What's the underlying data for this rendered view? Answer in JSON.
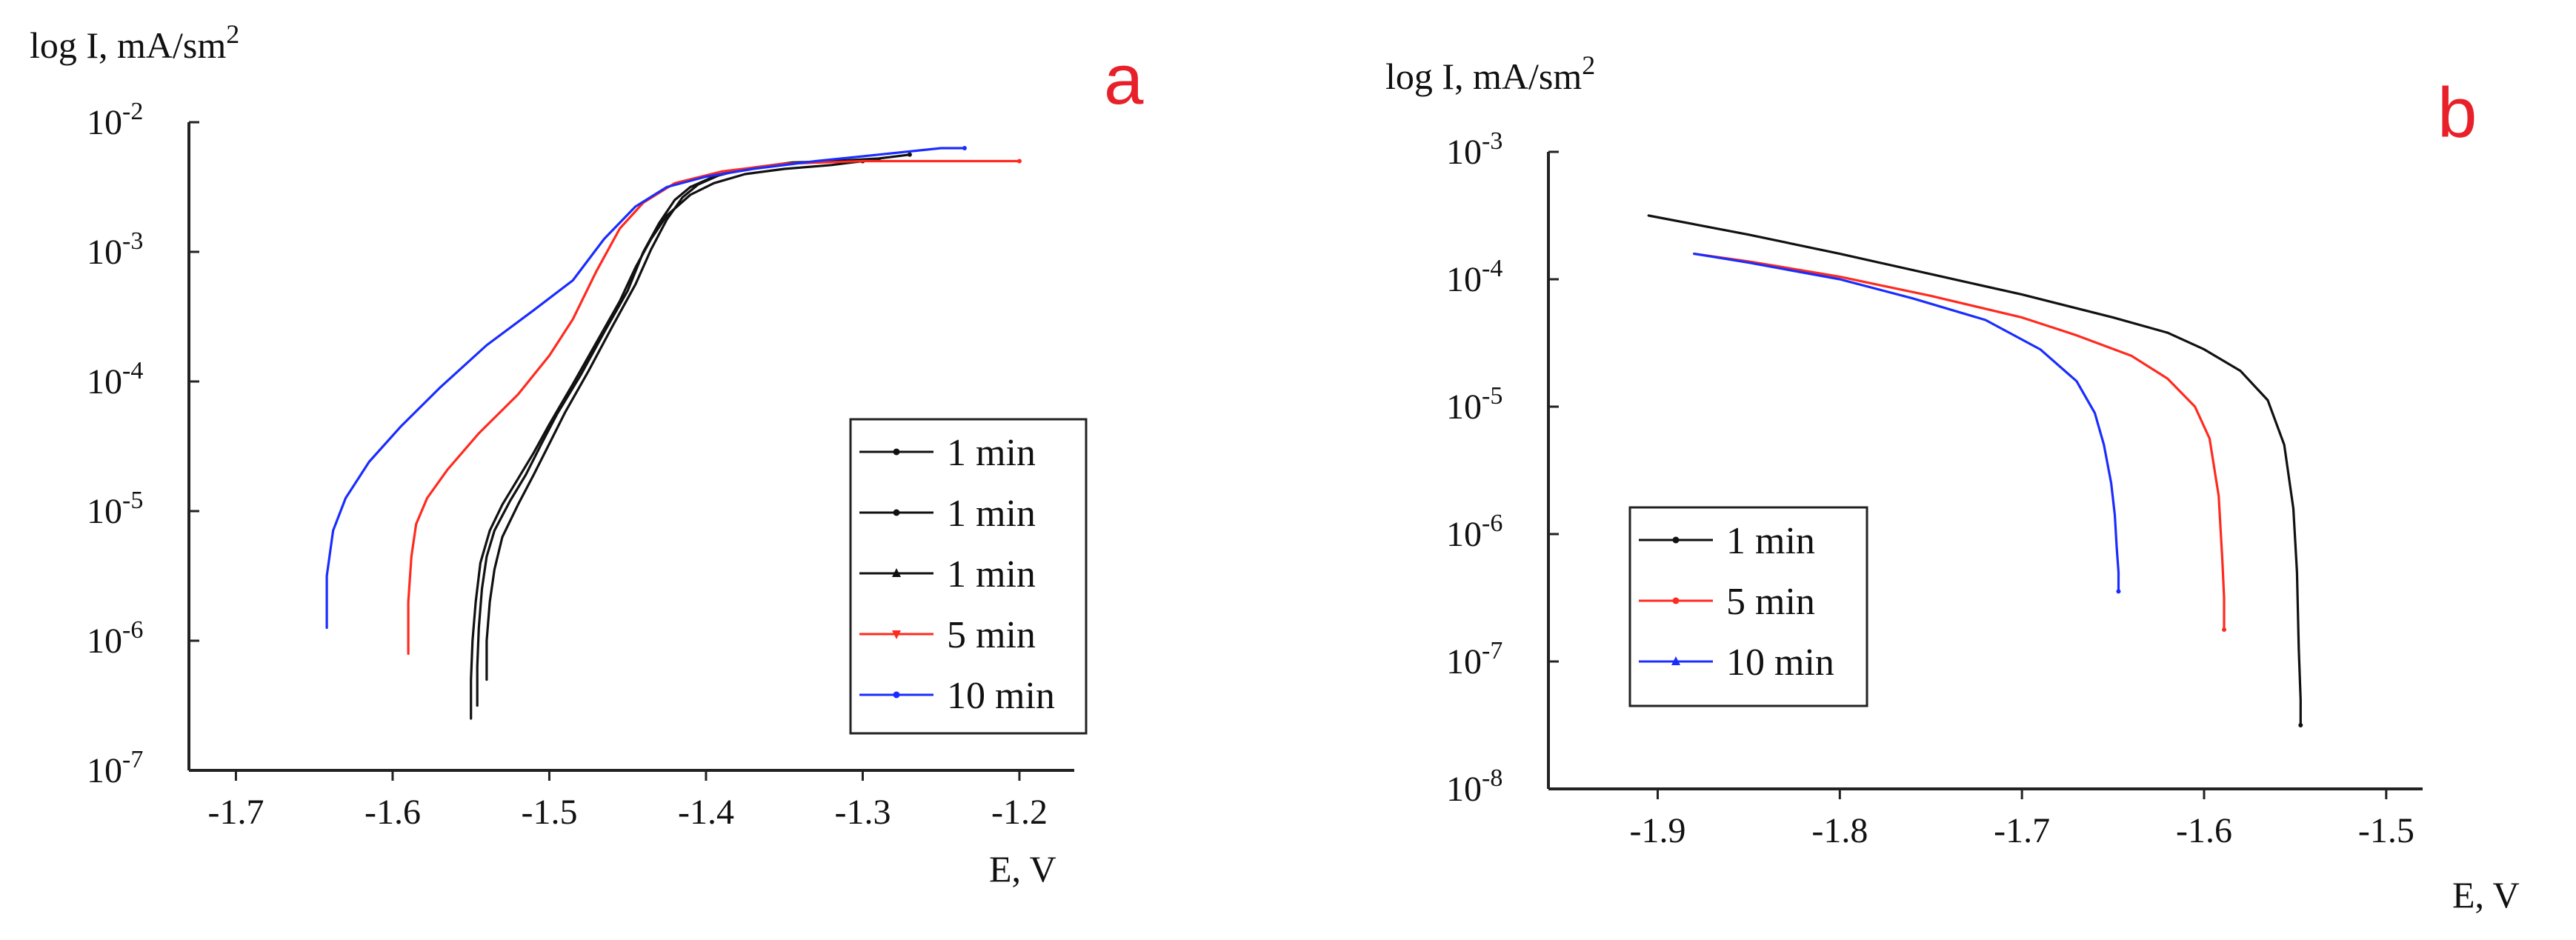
{
  "colors": {
    "black": "#111111",
    "red": "#ff2a1f",
    "blue": "#1a2cff",
    "panel_label": "#e8202a"
  },
  "chart_data": [
    {
      "type": "line",
      "panel_label": "a",
      "ylabel": "log I, mA/sm",
      "ylabel_sup": "2",
      "xlabel": "E, V",
      "xlim": [
        -1.73,
        -1.165
      ],
      "ylim_log10": [
        -7,
        -2
      ],
      "xticks": [
        -1.7,
        -1.6,
        -1.5,
        -1.4,
        -1.3,
        -1.2
      ],
      "xtick_labels": [
        "-1.7",
        "-1.6",
        "-1.5",
        "-1.4",
        "-1.3",
        "-1.2"
      ],
      "yticks": [
        {
          "base": "10",
          "exp": "-7",
          "value": -7
        },
        {
          "base": "10",
          "exp": "-6",
          "value": -6
        },
        {
          "base": "10",
          "exp": "-5",
          "value": -5
        },
        {
          "base": "10",
          "exp": "-4",
          "value": -4
        },
        {
          "base": "10",
          "exp": "-3",
          "value": -3
        },
        {
          "base": "10",
          "exp": "-2",
          "value": -2
        }
      ],
      "legend": {
        "position": "lower-right",
        "entries": [
          {
            "label": "1 min",
            "color": "black",
            "marker": "dot"
          },
          {
            "label": "1 min",
            "color": "black",
            "marker": "dot"
          },
          {
            "label": "1 min",
            "color": "black",
            "marker": "triangle-up"
          },
          {
            "label": "5 min",
            "color": "red",
            "marker": "triangle-down"
          },
          {
            "label": "10 min",
            "color": "blue",
            "marker": "dot"
          }
        ]
      },
      "series": [
        {
          "name": "1 min",
          "color": "black",
          "x": [
            -1.546,
            -1.546,
            -1.545,
            -1.543,
            -1.54,
            -1.535,
            -1.525,
            -1.515,
            -1.505,
            -1.495,
            -1.48,
            -1.465,
            -1.45,
            -1.44,
            -1.43,
            -1.42,
            -1.41,
            -1.395,
            -1.375,
            -1.35,
            -1.32,
            -1.29,
            -1.27
          ],
          "log10_y": [
            -6.5,
            -6.2,
            -5.9,
            -5.6,
            -5.35,
            -5.15,
            -4.92,
            -4.72,
            -4.48,
            -4.25,
            -3.95,
            -3.62,
            -3.3,
            -3.0,
            -2.78,
            -2.6,
            -2.5,
            -2.42,
            -2.36,
            -2.32,
            -2.3,
            -2.28,
            -2.25
          ]
        },
        {
          "name": "1 min",
          "color": "black",
          "x": [
            -1.54,
            -1.54,
            -1.538,
            -1.535,
            -1.53,
            -1.52,
            -1.51,
            -1.5,
            -1.49,
            -1.475,
            -1.46,
            -1.445,
            -1.435,
            -1.425,
            -1.415,
            -1.405,
            -1.39,
            -1.37,
            -1.345,
            -1.315,
            -1.29
          ],
          "log10_y": [
            -6.3,
            -6.0,
            -5.7,
            -5.45,
            -5.2,
            -4.95,
            -4.72,
            -4.48,
            -4.24,
            -3.92,
            -3.58,
            -3.25,
            -2.98,
            -2.75,
            -2.58,
            -2.48,
            -2.4,
            -2.35,
            -2.31,
            -2.3,
            -2.29
          ]
        },
        {
          "name": "1 min",
          "color": "black",
          "x": [
            -1.55,
            -1.55,
            -1.549,
            -1.547,
            -1.544,
            -1.538,
            -1.53,
            -1.52,
            -1.51,
            -1.5,
            -1.485,
            -1.47,
            -1.455,
            -1.445,
            -1.435,
            -1.425,
            -1.41,
            -1.395,
            -1.375,
            -1.35,
            -1.32,
            -1.3
          ],
          "log10_y": [
            -6.6,
            -6.3,
            -6.0,
            -5.7,
            -5.4,
            -5.15,
            -4.95,
            -4.75,
            -4.55,
            -4.33,
            -4.02,
            -3.7,
            -3.38,
            -3.12,
            -2.9,
            -2.72,
            -2.56,
            -2.47,
            -2.4,
            -2.36,
            -2.33,
            -2.3
          ]
        },
        {
          "name": "5 min",
          "color": "red",
          "x": [
            -1.59,
            -1.59,
            -1.588,
            -1.585,
            -1.578,
            -1.565,
            -1.545,
            -1.52,
            -1.5,
            -1.485,
            -1.47,
            -1.455,
            -1.44,
            -1.42,
            -1.39,
            -1.35,
            -1.3,
            -1.25,
            -1.2
          ],
          "log10_y": [
            -6.1,
            -5.7,
            -5.35,
            -5.1,
            -4.9,
            -4.68,
            -4.4,
            -4.1,
            -3.8,
            -3.52,
            -3.15,
            -2.82,
            -2.62,
            -2.47,
            -2.38,
            -2.32,
            -2.3,
            -2.3,
            -2.3
          ]
        },
        {
          "name": "10 min",
          "color": "blue",
          "x": [
            -1.642,
            -1.642,
            -1.638,
            -1.63,
            -1.615,
            -1.595,
            -1.57,
            -1.54,
            -1.51,
            -1.485,
            -1.465,
            -1.445,
            -1.425,
            -1.4,
            -1.37,
            -1.33,
            -1.29,
            -1.25,
            -1.235
          ],
          "log10_y": [
            -5.9,
            -5.5,
            -5.15,
            -4.9,
            -4.62,
            -4.35,
            -4.05,
            -3.72,
            -3.45,
            -3.22,
            -2.9,
            -2.65,
            -2.5,
            -2.42,
            -2.36,
            -2.3,
            -2.25,
            -2.2,
            -2.2
          ]
        }
      ]
    },
    {
      "type": "line",
      "panel_label": "b",
      "ylabel": "log I, mA/sm",
      "ylabel_sup": "2",
      "xlabel": "E, V",
      "xlim": [
        -1.96,
        -1.48
      ],
      "ylim_log10": [
        -8,
        -3
      ],
      "xticks": [
        -1.9,
        -1.8,
        -1.7,
        -1.6,
        -1.5
      ],
      "xtick_labels": [
        "-1.9",
        "-1.8",
        "-1.7",
        "-1.6",
        "-1.5"
      ],
      "yticks": [
        {
          "base": "10",
          "exp": "-8",
          "value": -8
        },
        {
          "base": "10",
          "exp": "-7",
          "value": -7
        },
        {
          "base": "10",
          "exp": "-6",
          "value": -6
        },
        {
          "base": "10",
          "exp": "-5",
          "value": -5
        },
        {
          "base": "10",
          "exp": "-4",
          "value": -4
        },
        {
          "base": "10",
          "exp": "-3",
          "value": -3
        }
      ],
      "legend": {
        "position": "lower-left",
        "entries": [
          {
            "label": "1 min",
            "color": "black",
            "marker": "dot"
          },
          {
            "label": "5 min",
            "color": "red",
            "marker": "dot"
          },
          {
            "label": "10 min",
            "color": "blue",
            "marker": "triangle-up"
          }
        ]
      },
      "series": [
        {
          "name": "1 min",
          "color": "black",
          "x": [
            -1.905,
            -1.85,
            -1.8,
            -1.75,
            -1.7,
            -1.65,
            -1.62,
            -1.6,
            -1.58,
            -1.565,
            -1.556,
            -1.551,
            -1.549,
            -1.548,
            -1.547,
            -1.547
          ],
          "log10_y": [
            -3.5,
            -3.65,
            -3.8,
            -3.96,
            -4.12,
            -4.3,
            -4.42,
            -4.55,
            -4.72,
            -4.95,
            -5.3,
            -5.8,
            -6.3,
            -6.9,
            -7.3,
            -7.5
          ]
        },
        {
          "name": "5 min",
          "color": "red",
          "x": [
            -1.88,
            -1.85,
            -1.8,
            -1.75,
            -1.7,
            -1.67,
            -1.64,
            -1.62,
            -1.605,
            -1.597,
            -1.592,
            -1.59,
            -1.589,
            -1.589
          ],
          "log10_y": [
            -3.8,
            -3.86,
            -3.98,
            -4.13,
            -4.3,
            -4.44,
            -4.6,
            -4.78,
            -5.0,
            -5.25,
            -5.7,
            -6.2,
            -6.5,
            -6.75
          ]
        },
        {
          "name": "10 min",
          "color": "blue",
          "x": [
            -1.88,
            -1.85,
            -1.8,
            -1.76,
            -1.72,
            -1.69,
            -1.67,
            -1.66,
            -1.655,
            -1.651,
            -1.649,
            -1.648,
            -1.647,
            -1.647
          ],
          "log10_y": [
            -3.8,
            -3.87,
            -4.0,
            -4.15,
            -4.32,
            -4.55,
            -4.8,
            -5.05,
            -5.3,
            -5.6,
            -5.85,
            -6.1,
            -6.3,
            -6.45
          ]
        }
      ]
    }
  ]
}
